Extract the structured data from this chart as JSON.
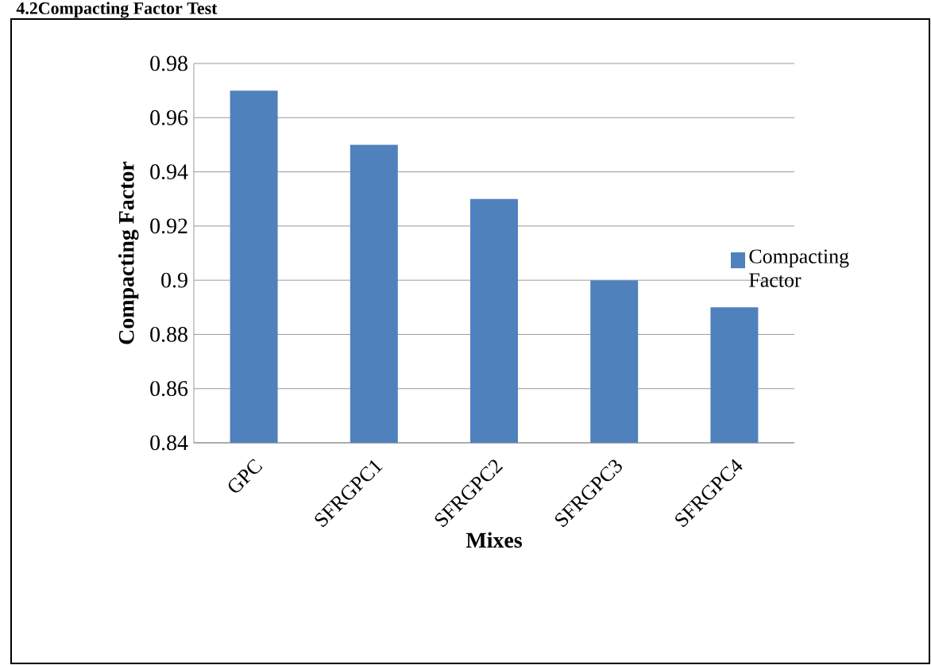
{
  "chart_data": {
    "type": "bar",
    "title": "4.2Compacting Factor Test",
    "xlabel": "Mixes",
    "ylabel": "Compacting  Factor",
    "categories": [
      "GPC",
      "SFRGPC1",
      "SFRGPC2",
      "SFRGPC3",
      "SFRGPC4"
    ],
    "series": [
      {
        "name": "Compacting Factor",
        "color": "#4f81bd",
        "values": [
          0.97,
          0.95,
          0.93,
          0.9,
          0.89
        ]
      }
    ],
    "ylim": [
      0.84,
      0.98
    ],
    "yticks": [
      0.84,
      0.86,
      0.88,
      0.9,
      0.92,
      0.94,
      0.96,
      0.98
    ],
    "grid": "y",
    "legend": "right"
  }
}
